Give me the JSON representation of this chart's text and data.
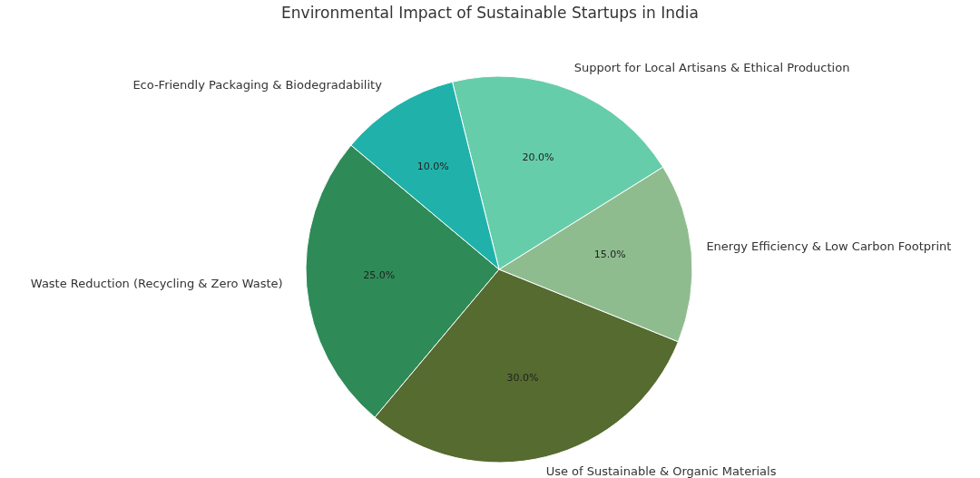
{
  "chart_data": {
    "type": "pie",
    "title": "Environmental Impact of Sustainable Startups in India",
    "categories": [
      "Waste Reduction (Recycling & Zero Waste)",
      "Use of Sustainable & Organic Materials",
      "Energy Efficiency & Low Carbon Footprint",
      "Support for Local Artisans & Ethical Production",
      "Eco-Friendly Packaging & Biodegradability"
    ],
    "values": [
      25,
      30,
      15,
      20,
      10
    ],
    "value_labels": [
      "25.0%",
      "30.0%",
      "15.0%",
      "20.0%",
      "10.0%"
    ],
    "colors": [
      "#2e8b57",
      "#556b2f",
      "#8fbc8f",
      "#66cdaa",
      "#20b2aa"
    ]
  }
}
